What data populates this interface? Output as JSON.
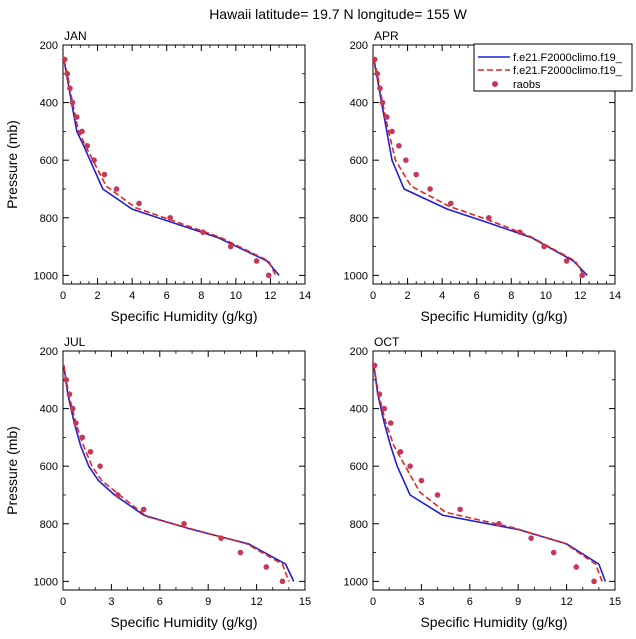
{
  "title": "Hawaii  latitude= 19.7 N longitude= 155 W",
  "legend": {
    "items": [
      {
        "label": "f.e21.F2000climo.f19_",
        "style": "solid",
        "color": "#1f1fd6"
      },
      {
        "label": "f.e21.F2000climo.f19_",
        "style": "dashed",
        "color": "#e0281e"
      },
      {
        "label": "raobs",
        "style": "dot",
        "color": "#c4385a"
      }
    ]
  },
  "chart_data": [
    {
      "type": "line",
      "panel": "JAN",
      "title": "JAN",
      "xlabel": "Specific Humidity (g/kg)",
      "ylabel": "Pressure (mb)",
      "xlim": [
        0,
        14
      ],
      "ylim": [
        200,
        1030
      ],
      "y_inverted": true,
      "xticks": [
        0,
        2,
        4,
        6,
        8,
        10,
        12,
        14
      ],
      "yticks": [
        200,
        400,
        600,
        800,
        1000
      ],
      "series": [
        {
          "name": "f.e21.F2000climo.f19_",
          "x": [
            0.05,
            0.2,
            0.5,
            0.8,
            1.2,
            2.3,
            4.0,
            6.5,
            9.0,
            11.8,
            12.5
          ],
          "y": [
            250,
            300,
            400,
            500,
            550,
            700,
            770,
            820,
            870,
            950,
            1000
          ]
        },
        {
          "name": "f.e21.F2000climo.f19_",
          "x": [
            0.05,
            0.25,
            0.55,
            0.9,
            1.3,
            2.5,
            4.2,
            6.6,
            9.1,
            11.9,
            12.3
          ],
          "y": [
            250,
            300,
            400,
            500,
            550,
            690,
            765,
            815,
            868,
            950,
            1000
          ]
        },
        {
          "name": "raobs",
          "x": [
            0.1,
            0.25,
            0.4,
            0.55,
            0.8,
            1.1,
            1.4,
            1.8,
            2.4,
            3.1,
            4.4,
            6.2,
            8.1,
            9.7,
            11.2,
            11.9
          ],
          "y": [
            250,
            300,
            350,
            400,
            450,
            500,
            550,
            600,
            650,
            700,
            750,
            800,
            850,
            900,
            950,
            1000
          ]
        }
      ]
    },
    {
      "type": "line",
      "panel": "APR",
      "title": "APR",
      "xlabel": "Specific Humidity (g/kg)",
      "ylabel": "",
      "xlim": [
        0,
        14
      ],
      "ylim": [
        200,
        1030
      ],
      "y_inverted": true,
      "xticks": [
        0,
        2,
        4,
        6,
        8,
        10,
        12,
        14
      ],
      "yticks": [
        200,
        400,
        600,
        800,
        1000
      ],
      "series": [
        {
          "name": "f.e21.F2000climo.f19_",
          "x": [
            0.05,
            0.2,
            0.5,
            0.8,
            1.1,
            1.8,
            4.3,
            6.8,
            9.2,
            11.6,
            12.4
          ],
          "y": [
            250,
            300,
            400,
            500,
            600,
            700,
            770,
            820,
            870,
            950,
            1000
          ]
        },
        {
          "name": "f.e21.F2000climo.f19_",
          "x": [
            0.05,
            0.25,
            0.55,
            0.9,
            1.3,
            2.2,
            4.4,
            6.8,
            9.1,
            11.7,
            12.2
          ],
          "y": [
            250,
            300,
            400,
            500,
            600,
            690,
            760,
            810,
            865,
            950,
            1000
          ]
        },
        {
          "name": "raobs",
          "x": [
            0.1,
            0.25,
            0.4,
            0.55,
            0.8,
            1.1,
            1.5,
            1.9,
            2.5,
            3.3,
            4.5,
            6.7,
            8.5,
            9.9,
            11.2,
            12.1
          ],
          "y": [
            250,
            300,
            350,
            400,
            450,
            500,
            550,
            600,
            650,
            700,
            750,
            800,
            850,
            900,
            950,
            1000
          ]
        }
      ]
    },
    {
      "type": "line",
      "panel": "JUL",
      "title": "JUL",
      "xlabel": "Specific Humidity (g/kg)",
      "ylabel": "Pressure (mb)",
      "xlim": [
        0,
        15
      ],
      "ylim": [
        200,
        1030
      ],
      "y_inverted": true,
      "xticks": [
        0,
        3,
        6,
        9,
        12,
        15
      ],
      "yticks": [
        200,
        400,
        600,
        800,
        1000
      ],
      "series": [
        {
          "name": "f.e21.F2000climo.f19_",
          "x": [
            0.05,
            0.3,
            0.7,
            1.1,
            1.6,
            2.2,
            3.2,
            5.0,
            8.0,
            11.5,
            13.8,
            14.3
          ],
          "y": [
            250,
            350,
            450,
            530,
            600,
            650,
            700,
            770,
            820,
            870,
            940,
            1000
          ]
        },
        {
          "name": "f.e21.F2000climo.f19_",
          "x": [
            0.05,
            0.35,
            0.8,
            1.2,
            1.8,
            2.4,
            3.5,
            5.2,
            8.1,
            11.4,
            13.6,
            14.0
          ],
          "y": [
            250,
            350,
            450,
            520,
            600,
            650,
            700,
            775,
            820,
            870,
            940,
            1000
          ]
        },
        {
          "name": "raobs",
          "x": [
            0.2,
            0.4,
            0.6,
            0.8,
            1.2,
            1.7,
            2.3,
            3.4,
            5.0,
            7.5,
            9.8,
            11.0,
            12.6,
            13.6
          ],
          "y": [
            300,
            350,
            400,
            450,
            500,
            550,
            600,
            700,
            750,
            800,
            850,
            900,
            950,
            1000
          ]
        }
      ]
    },
    {
      "type": "line",
      "panel": "OCT",
      "title": "OCT",
      "xlabel": "Specific Humidity (g/kg)",
      "ylabel": "",
      "xlim": [
        0,
        15
      ],
      "ylim": [
        200,
        1030
      ],
      "y_inverted": true,
      "xticks": [
        0,
        3,
        6,
        9,
        12,
        15
      ],
      "yticks": [
        200,
        400,
        600,
        800,
        1000
      ],
      "series": [
        {
          "name": "f.e21.F2000climo.f19_",
          "x": [
            0.05,
            0.3,
            0.7,
            1.1,
            1.5,
            2.3,
            4.3,
            9.0,
            12.0,
            14.0,
            14.4
          ],
          "y": [
            250,
            350,
            450,
            530,
            600,
            700,
            770,
            820,
            870,
            940,
            1000
          ]
        },
        {
          "name": "f.e21.F2000climo.f19_",
          "x": [
            0.05,
            0.35,
            0.8,
            1.3,
            2.0,
            2.9,
            4.5,
            8.8,
            11.9,
            13.8,
            14.2
          ],
          "y": [
            250,
            350,
            450,
            530,
            600,
            690,
            760,
            815,
            868,
            940,
            1000
          ]
        },
        {
          "name": "raobs",
          "x": [
            0.1,
            0.4,
            0.7,
            1.1,
            1.7,
            2.3,
            3.0,
            4.0,
            5.4,
            7.8,
            9.8,
            11.2,
            12.6,
            13.7
          ],
          "y": [
            250,
            350,
            400,
            450,
            550,
            600,
            650,
            700,
            750,
            800,
            850,
            900,
            950,
            1000
          ]
        }
      ]
    }
  ]
}
